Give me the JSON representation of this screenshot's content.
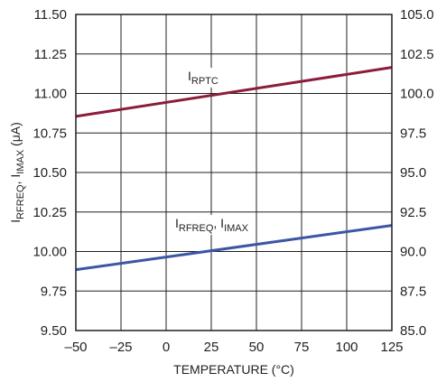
{
  "chart_data": {
    "type": "line",
    "xlabel": "TEMPERATURE (°C)",
    "ylabel_parts": [
      {
        "text": "I",
        "sub": false
      },
      {
        "text": "RFREQ",
        "sub": true
      },
      {
        "text": ", I",
        "sub": false
      },
      {
        "text": "IMAX",
        "sub": true
      },
      {
        "text": " (μA)",
        "sub": false
      }
    ],
    "xlim": [
      -50,
      125
    ],
    "xticks": [
      "–50",
      "–25",
      "0",
      "25",
      "50",
      "75",
      "100",
      "125"
    ],
    "xtick_values": [
      -50,
      -25,
      0,
      25,
      50,
      75,
      100,
      125
    ],
    "ylim": [
      9.5,
      11.5
    ],
    "yticks": [
      "9.50",
      "9.75",
      "10.00",
      "10.25",
      "10.50",
      "10.75",
      "11.00",
      "11.25",
      "11.50"
    ],
    "ytick_values": [
      9.5,
      9.75,
      10.0,
      10.25,
      10.5,
      10.75,
      11.0,
      11.25,
      11.5
    ],
    "y2lim": [
      85.0,
      105.0
    ],
    "y2ticks": [
      "85.0",
      "87.5",
      "90.0",
      "92.5",
      "95.0",
      "97.5",
      "100.0",
      "102.5",
      "105.0"
    ],
    "y2tick_values": [
      85.0,
      87.5,
      90.0,
      92.5,
      95.0,
      97.5,
      100.0,
      102.5,
      105.0
    ],
    "grid": true,
    "series": [
      {
        "label_parts": [
          {
            "text": "I",
            "sub": false
          },
          {
            "text": "RPTC",
            "sub": true
          }
        ],
        "axis": "right",
        "color": "#8c1d3a",
        "x": [
          -50,
          125
        ],
        "y": [
          98.55,
          101.65
        ]
      },
      {
        "label_parts": [
          {
            "text": "I",
            "sub": false
          },
          {
            "text": "RFREQ",
            "sub": true
          },
          {
            "text": ", I",
            "sub": false
          },
          {
            "text": "IMAX",
            "sub": true
          }
        ],
        "axis": "left",
        "color": "#3b56a3",
        "x": [
          -50,
          125
        ],
        "y": [
          9.885,
          10.165
        ]
      }
    ]
  }
}
